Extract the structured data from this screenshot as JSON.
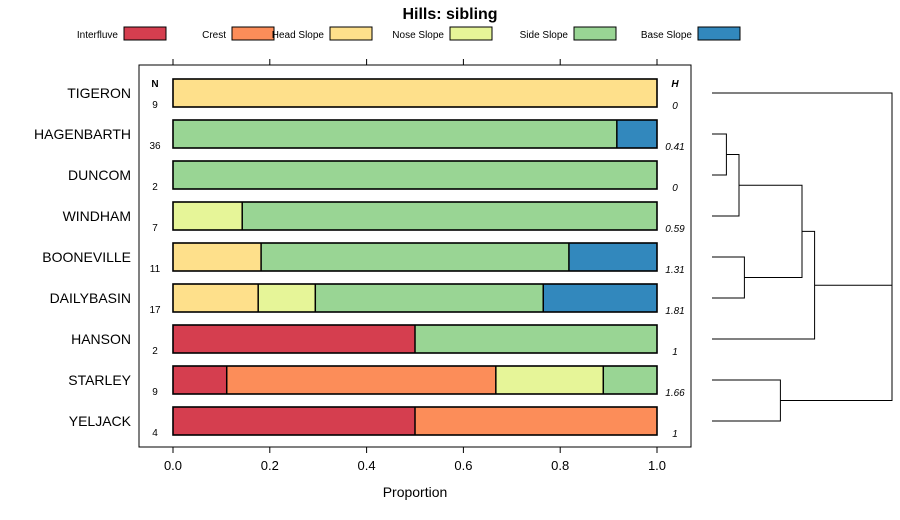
{
  "chart_data": {
    "type": "bar",
    "stacked": true,
    "orientation": "horizontal",
    "title": "Hills: sibling",
    "xlabel": "Proportion",
    "ylabel": "",
    "xlim": [
      0,
      1
    ],
    "x_ticks": [
      "0.0",
      "0.2",
      "0.4",
      "0.6",
      "0.8",
      "1.0"
    ],
    "legend": [
      {
        "name": "Interfluve",
        "color": "#d53e4f"
      },
      {
        "name": "Crest",
        "color": "#fc8d59"
      },
      {
        "name": "Head Slope",
        "color": "#fee08b"
      },
      {
        "name": "Nose Slope",
        "color": "#e6f598"
      },
      {
        "name": "Side Slope",
        "color": "#99d594"
      },
      {
        "name": "Base Slope",
        "color": "#3288bd"
      }
    ],
    "n_header": "N",
    "h_header": "H",
    "categories": [
      "TIGERON",
      "HAGENBARTH",
      "DUNCOM",
      "WINDHAM",
      "BOONEVILLE",
      "DAILYBASIN",
      "HANSON",
      "STARLEY",
      "YELJACK"
    ],
    "n_values": [
      "9",
      "36",
      "2",
      "7",
      "11",
      "17",
      "2",
      "9",
      "4"
    ],
    "h_values": [
      "0",
      "0.41",
      "0",
      "0.59",
      "1.31",
      "1.81",
      "1",
      "1.66",
      "1"
    ],
    "series": [
      {
        "name": "Interfluve",
        "values": [
          0,
          0,
          0,
          0,
          0,
          0,
          0.5,
          0.111,
          0.5
        ]
      },
      {
        "name": "Crest",
        "values": [
          0,
          0,
          0,
          0,
          0,
          0,
          0,
          0.556,
          0.5
        ]
      },
      {
        "name": "Head Slope",
        "values": [
          1,
          0,
          0,
          0,
          0.182,
          0.176,
          0,
          0,
          0
        ]
      },
      {
        "name": "Nose Slope",
        "values": [
          0,
          0,
          0,
          0.143,
          0,
          0.118,
          0,
          0.222,
          0
        ]
      },
      {
        "name": "Side Slope",
        "values": [
          0,
          0.917,
          1,
          0.857,
          0.636,
          0.471,
          0.5,
          0.111,
          0
        ]
      },
      {
        "name": "Base Slope",
        "values": [
          0,
          0.083,
          0,
          0,
          0.182,
          0.235,
          0,
          0,
          0
        ]
      }
    ],
    "dendrogram": {
      "merges": [
        {
          "a": 1,
          "b": 2,
          "height": 0.08
        },
        {
          "a": 4,
          "b": 5,
          "height": 0.18
        },
        {
          "a": 7,
          "b": 8,
          "height": 0.38
        },
        {
          "a": 9,
          "b": 3,
          "height": 0.15
        },
        {
          "a": 12,
          "b": 10,
          "height": 0.5
        },
        {
          "a": 13,
          "b": 6,
          "height": 0.57
        },
        {
          "a": 0,
          "b": 14,
          "height": 1.0
        },
        {
          "a": 15,
          "b": 11,
          "height": 1.0
        }
      ]
    }
  }
}
